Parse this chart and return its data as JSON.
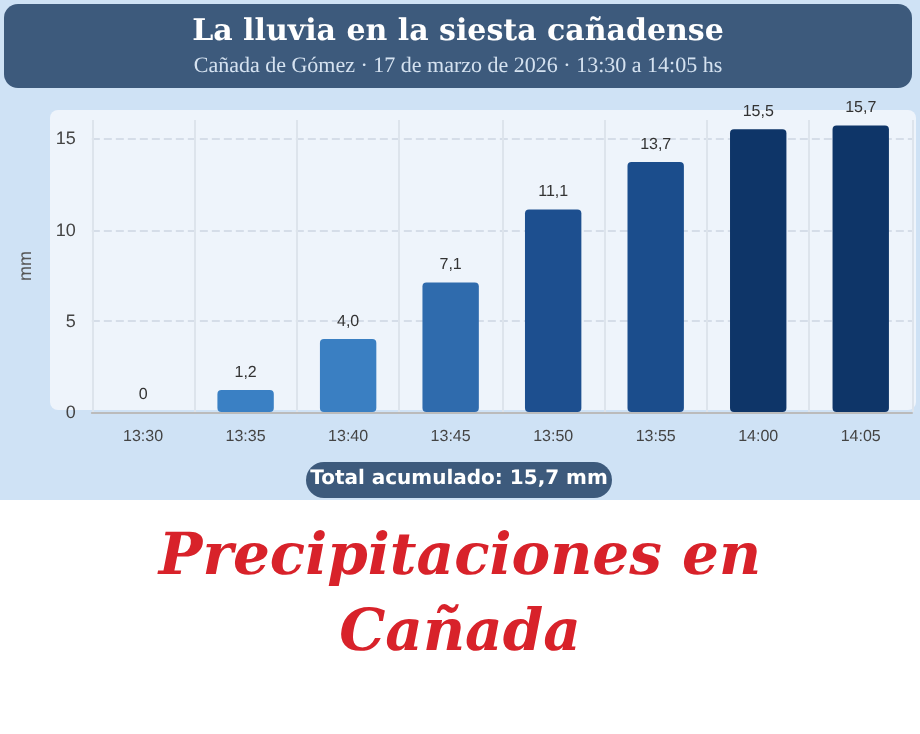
{
  "chart_data": {
    "type": "bar",
    "title": "La lluvia en la siesta cañadense",
    "subtitle": "Cañada de Gómez · 17 de marzo de 2026 · 13:30 a 14:05 hs",
    "ylabel": "mm",
    "categories": [
      "13:30",
      "13:35",
      "13:40",
      "13:45",
      "13:50",
      "13:55",
      "14:00",
      "14:05"
    ],
    "values": [
      0,
      1.2,
      4.0,
      7.1,
      11.1,
      13.7,
      15.5,
      15.7
    ],
    "value_labels": [
      "0",
      "1,2",
      "4,0",
      "7,1",
      "11,1",
      "13,7",
      "15,5",
      "15,7"
    ],
    "colors": [
      "#3a80c4",
      "#3a80c4",
      "#3a7fc2",
      "#2f6bad",
      "#1d4f8f",
      "#1b4d8c",
      "#0e3568",
      "#0e3568"
    ],
    "ylim": [
      0,
      16
    ],
    "yticks": [
      0,
      5,
      10,
      15
    ],
    "grid": true,
    "annotations": [
      "Total acumulado: 15,7 mm",
      "Precipitaciones en Cañada"
    ]
  }
}
